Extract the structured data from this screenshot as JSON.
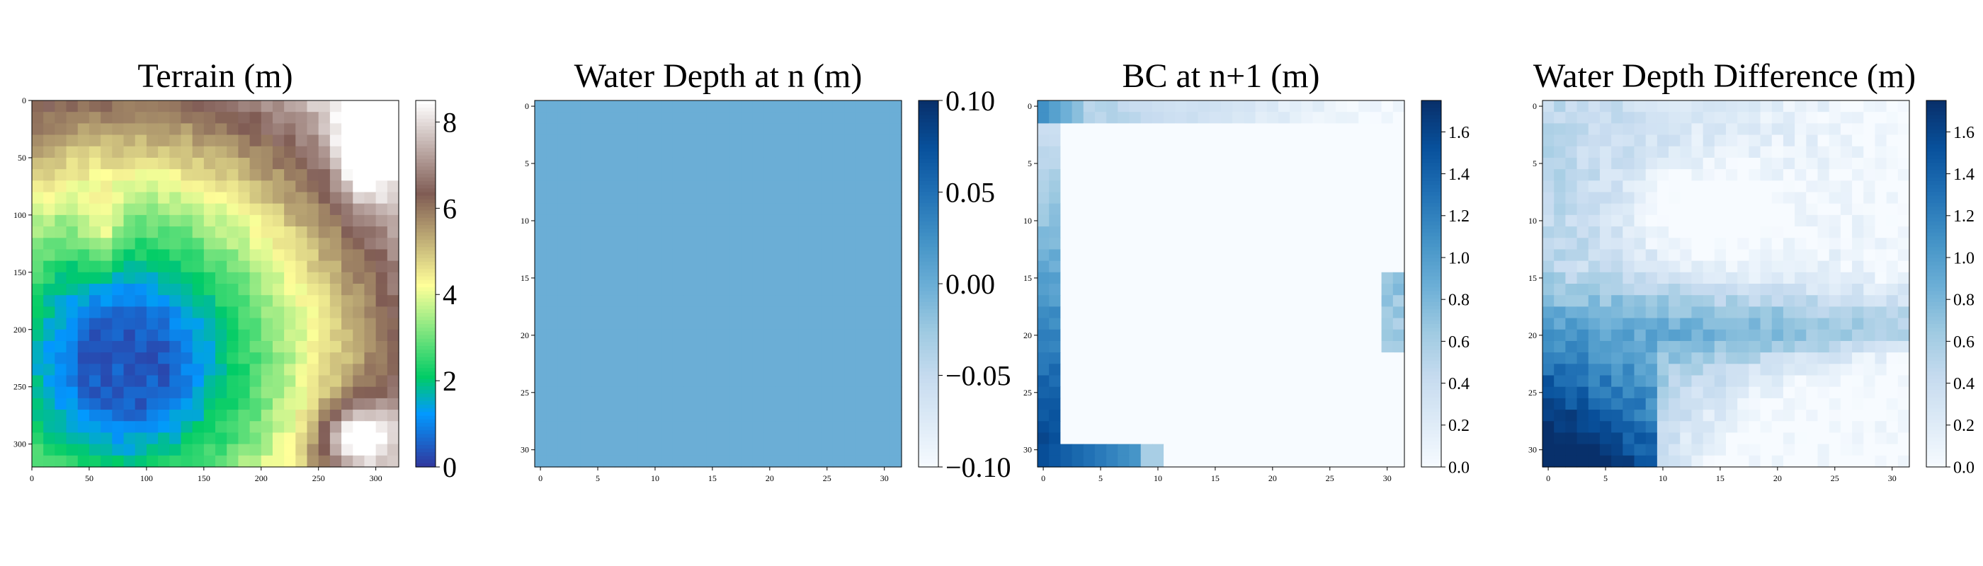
{
  "chart_data": [
    {
      "type": "heatmap",
      "title": "Terrain (m)",
      "colormap": "terrain",
      "grid_size": 32,
      "xlim": [
        0,
        320
      ],
      "ylim": [
        320,
        0
      ],
      "x_ticks": [
        "0",
        "50",
        "100",
        "150",
        "200",
        "250",
        "300"
      ],
      "y_ticks": [
        "0",
        "50",
        "100",
        "150",
        "200",
        "250",
        "300"
      ],
      "colorbar": {
        "min": 0,
        "max": 8.5,
        "ticks": [
          "0",
          "2",
          "4",
          "6",
          "8"
        ]
      },
      "description_values": "low terrain (0-1 m) lower-left basin, green band mid, high ridges (5-8.5 m) top-right and bottom-right"
    },
    {
      "type": "heatmap",
      "title": "Water Depth at n (m)",
      "colormap": "Blues",
      "grid_size": 32,
      "xlim": [
        0,
        31
      ],
      "ylim": [
        31,
        0
      ],
      "x_ticks": [
        "0",
        "5",
        "10",
        "15",
        "20",
        "25",
        "30"
      ],
      "y_ticks": [
        "0",
        "5",
        "10",
        "15",
        "20",
        "25",
        "30"
      ],
      "uniform_value": 0.0,
      "colorbar": {
        "min": -0.1,
        "max": 0.1,
        "ticks": [
          "0.10",
          "0.05",
          "0.00",
          "−0.05",
          "−0.10"
        ]
      }
    },
    {
      "type": "heatmap",
      "title": "BC at n+1 (m)",
      "colormap": "Blues",
      "grid_size": 32,
      "xlim": [
        0,
        31
      ],
      "ylim": [
        31,
        0
      ],
      "x_ticks": [
        "0",
        "5",
        "10",
        "15",
        "20",
        "25",
        "30"
      ],
      "y_ticks": [
        "0",
        "5",
        "10",
        "15",
        "20",
        "25",
        "30"
      ],
      "colorbar": {
        "min": 0,
        "max": 1.75,
        "ticks": [
          "1.6",
          "1.4",
          "1.2",
          "1.0",
          "0.8",
          "0.6",
          "0.4",
          "0.2",
          "0.0"
        ]
      }
    },
    {
      "type": "heatmap",
      "title": "Water Depth Difference (m)",
      "colormap": "Blues",
      "grid_size": 32,
      "xlim": [
        0,
        31
      ],
      "ylim": [
        31,
        0
      ],
      "x_ticks": [
        "0",
        "5",
        "10",
        "15",
        "20",
        "25",
        "30"
      ],
      "y_ticks": [
        "0",
        "5",
        "10",
        "15",
        "20",
        "25",
        "30"
      ],
      "colorbar": {
        "min": 0,
        "max": 1.75,
        "ticks": [
          "1.6",
          "1.4",
          "1.2",
          "1.0",
          "0.8",
          "0.6",
          "0.4",
          "0.2",
          "0.0"
        ]
      }
    }
  ]
}
